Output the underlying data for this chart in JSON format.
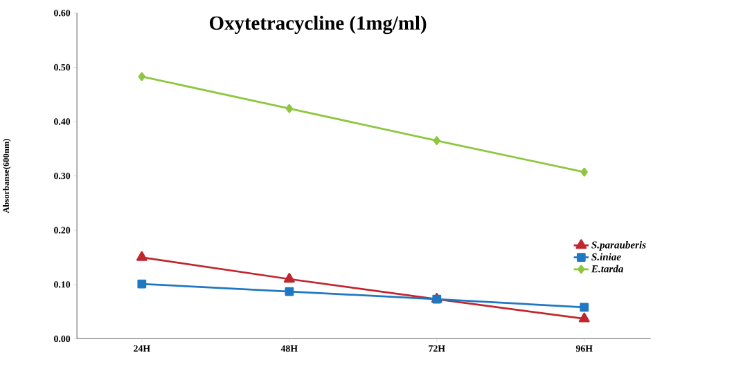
{
  "chart_data": {
    "type": "line",
    "title": "Oxytetracycline  (1mg/ml)",
    "ylabel": "Absorbanse(600nm)",
    "categories": [
      "24H",
      "48H",
      "72H",
      "96H"
    ],
    "series": [
      {
        "name": "*S.parauberis*",
        "color": "#c0272d",
        "marker": "triangle",
        "values": [
          0.15,
          0.11,
          0.073,
          0.037
        ]
      },
      {
        "name": "*S.iniae*",
        "color": "#1f78c1",
        "marker": "square",
        "values": [
          0.101,
          0.087,
          0.073,
          0.058
        ]
      },
      {
        "name": "*E.tarda*",
        "color": "#8dc63f",
        "marker": "diamond",
        "values": [
          0.483,
          0.424,
          0.365,
          0.307
        ]
      }
    ],
    "ylim": [
      0,
      0.6
    ],
    "yticks": [
      {
        "value": 0,
        "label": "0.00"
      },
      {
        "value": 0.1,
        "label": "0.10"
      },
      {
        "value": 0.2,
        "label": "0.20"
      },
      {
        "value": 0.3,
        "label": "0.30"
      },
      {
        "value": 0.4,
        "label": "0.40"
      },
      {
        "value": 0.5,
        "label": "0.50"
      },
      {
        "value": 0.6,
        "label": "0.60"
      }
    ],
    "grid": false,
    "legend": "right",
    "line_style": "solid"
  }
}
